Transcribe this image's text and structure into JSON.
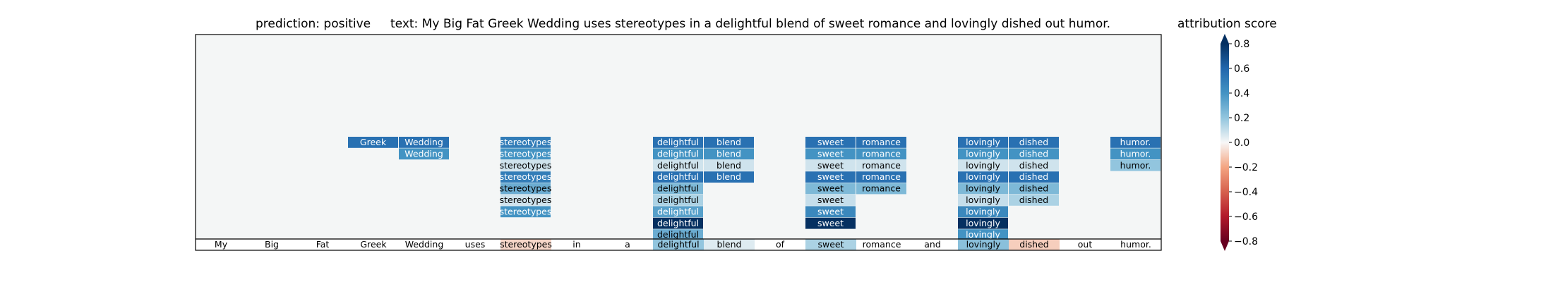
{
  "chart_data": {
    "type": "heatmap",
    "title_prediction": "prediction:  positive",
    "title_text": "text:  My Big Fat Greek Wedding uses stereotypes in a delightful blend of sweet romance and lovingly dished out humor.",
    "colorbar_label": "attribution score",
    "colorbar_range": [
      -0.8,
      0.8
    ],
    "colorbar_ticks": [
      "0.8",
      "0.6",
      "0.4",
      "0.2",
      "0.0",
      "−0.2",
      "−0.4",
      "−0.6",
      "−0.8"
    ],
    "colorbar_tick_values": [
      0.8,
      0.6,
      0.4,
      0.2,
      0.0,
      -0.2,
      -0.4,
      -0.6,
      -0.8
    ],
    "tokens": [
      "My",
      "Big",
      "Fat",
      "Greek",
      "Wedding",
      "uses",
      "stereotypes",
      "in",
      "a",
      "delightful",
      "blend",
      "of",
      "sweet",
      "romance",
      "and",
      "lovingly",
      "dished",
      "out",
      "humor."
    ],
    "base_scores": [
      0.0,
      0.0,
      0.0,
      0.0,
      0.0,
      0.0,
      -0.08,
      0.0,
      0.0,
      0.2,
      0.05,
      0.0,
      0.15,
      0.0,
      0.0,
      0.22,
      -0.1,
      0.0,
      0.0
    ],
    "rows": 9,
    "cells": [
      {
        "token": 3,
        "level": 8,
        "value": 0.55
      },
      {
        "token": 4,
        "level": 8,
        "value": 0.55
      },
      {
        "token": 4,
        "level": 7,
        "value": 0.4
      },
      {
        "token": 6,
        "level": 8,
        "value": 0.5
      },
      {
        "token": 6,
        "level": 7,
        "value": 0.4
      },
      {
        "token": 6,
        "level": 6,
        "value": 0.08
      },
      {
        "token": 6,
        "level": 5,
        "value": 0.5
      },
      {
        "token": 6,
        "level": 4,
        "value": 0.3
      },
      {
        "token": 6,
        "level": 3,
        "value": 0.08
      },
      {
        "token": 6,
        "level": 2,
        "value": 0.4
      },
      {
        "token": 9,
        "level": 8,
        "value": 0.55
      },
      {
        "token": 9,
        "level": 7,
        "value": 0.4
      },
      {
        "token": 9,
        "level": 6,
        "value": 0.08
      },
      {
        "token": 9,
        "level": 5,
        "value": 0.55
      },
      {
        "token": 9,
        "level": 4,
        "value": 0.25
      },
      {
        "token": 9,
        "level": 3,
        "value": 0.15
      },
      {
        "token": 9,
        "level": 2,
        "value": 0.35
      },
      {
        "token": 9,
        "level": 1,
        "value": 0.8
      },
      {
        "token": 9,
        "level": 0,
        "value": 0.3
      },
      {
        "token": 10,
        "level": 8,
        "value": 0.55
      },
      {
        "token": 10,
        "level": 7,
        "value": 0.4
      },
      {
        "token": 10,
        "level": 6,
        "value": 0.08
      },
      {
        "token": 10,
        "level": 5,
        "value": 0.55
      },
      {
        "token": 12,
        "level": 8,
        "value": 0.55
      },
      {
        "token": 12,
        "level": 7,
        "value": 0.4
      },
      {
        "token": 12,
        "level": 6,
        "value": 0.08
      },
      {
        "token": 12,
        "level": 5,
        "value": 0.55
      },
      {
        "token": 12,
        "level": 4,
        "value": 0.25
      },
      {
        "token": 12,
        "level": 3,
        "value": 0.1
      },
      {
        "token": 12,
        "level": 2,
        "value": 0.45
      },
      {
        "token": 12,
        "level": 1,
        "value": 0.8
      },
      {
        "token": 13,
        "level": 8,
        "value": 0.55
      },
      {
        "token": 13,
        "level": 7,
        "value": 0.4
      },
      {
        "token": 13,
        "level": 6,
        "value": 0.08
      },
      {
        "token": 13,
        "level": 5,
        "value": 0.55
      },
      {
        "token": 13,
        "level": 4,
        "value": 0.25
      },
      {
        "token": 15,
        "level": 8,
        "value": 0.55
      },
      {
        "token": 15,
        "level": 7,
        "value": 0.4
      },
      {
        "token": 15,
        "level": 6,
        "value": 0.08
      },
      {
        "token": 15,
        "level": 5,
        "value": 0.55
      },
      {
        "token": 15,
        "level": 4,
        "value": 0.25
      },
      {
        "token": 15,
        "level": 3,
        "value": 0.1
      },
      {
        "token": 15,
        "level": 2,
        "value": 0.45
      },
      {
        "token": 15,
        "level": 1,
        "value": 0.8
      },
      {
        "token": 15,
        "level": 0,
        "value": 0.4
      },
      {
        "token": 16,
        "level": 8,
        "value": 0.55
      },
      {
        "token": 16,
        "level": 7,
        "value": 0.4
      },
      {
        "token": 16,
        "level": 6,
        "value": 0.08
      },
      {
        "token": 16,
        "level": 5,
        "value": 0.55
      },
      {
        "token": 16,
        "level": 4,
        "value": 0.25
      },
      {
        "token": 16,
        "level": 3,
        "value": 0.15
      },
      {
        "token": 18,
        "level": 8,
        "value": 0.55
      },
      {
        "token": 18,
        "level": 7,
        "value": 0.4
      },
      {
        "token": 18,
        "level": 6,
        "value": 0.2
      }
    ]
  }
}
